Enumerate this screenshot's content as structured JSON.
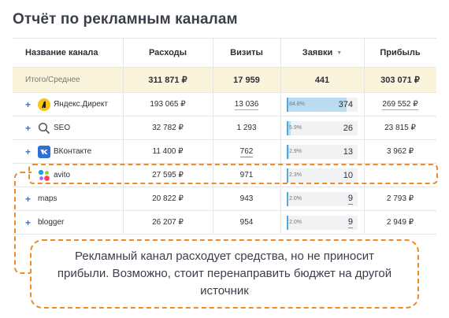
{
  "title": "Отчёт по рекламным каналам",
  "columns": {
    "name": "Название канала",
    "cost": "Расходы",
    "visits": "Визиты",
    "leads": "Заявки",
    "leads_sort_icon": "triangle-down-icon",
    "profit": "Прибыль"
  },
  "total": {
    "name": "Итого/Среднее",
    "cost": "311 871 ₽",
    "visits": "17 959",
    "leads": "441",
    "profit": "303 071 ₽"
  },
  "rows": [
    {
      "expand": "+",
      "icon": "yandex-direct-icon",
      "name": "Яндекс.Директ",
      "cost": "193 065 ₽",
      "visits": "13 036",
      "visits_mark": "green",
      "leads_pct": "84.8%",
      "leads_share": 0.848,
      "leads": "374",
      "leads_mark": "none",
      "profit": "269 552 ₽",
      "profit_mark": "green"
    },
    {
      "expand": "+",
      "icon": "search-icon",
      "name": "SEO",
      "cost": "32 782 ₽",
      "visits": "1 293",
      "visits_mark": "none",
      "leads_pct": "5.9%",
      "leads_share": 0.059,
      "leads": "26",
      "leads_mark": "none",
      "profit": "23 815 ₽",
      "profit_mark": "none"
    },
    {
      "expand": "+",
      "icon": "vk-icon",
      "name": "ВКонтакте",
      "cost": "11 400 ₽",
      "visits": "762",
      "visits_mark": "red",
      "leads_pct": "2.9%",
      "leads_share": 0.029,
      "leads": "13",
      "leads_mark": "none",
      "profit": "3 962 ₽",
      "profit_mark": "none"
    },
    {
      "expand": "",
      "icon": "avito-icon",
      "name": "avito",
      "cost": "27 595 ₽",
      "visits": "971",
      "visits_mark": "none",
      "leads_pct": "2.3%",
      "leads_share": 0.023,
      "leads": "10",
      "leads_mark": "none",
      "profit": "",
      "profit_mark": "none"
    },
    {
      "expand": "+",
      "icon": "",
      "name": "maps",
      "cost": "20 822 ₽",
      "visits": "943",
      "visits_mark": "none",
      "leads_pct": "2.0%",
      "leads_share": 0.02,
      "leads": "9",
      "leads_mark": "red",
      "profit": "2 793 ₽",
      "profit_mark": "none"
    },
    {
      "expand": "+",
      "icon": "",
      "name": "blogger",
      "cost": "26 207 ₽",
      "visits": "954",
      "visits_mark": "none",
      "leads_pct": "2.0%",
      "leads_share": 0.02,
      "leads": "9",
      "leads_mark": "red",
      "profit": "2 949 ₽",
      "profit_mark": "none"
    }
  ],
  "callout": "Рекламный канал расходует средства, но не приносит прибыли. Возможно, стоит перенаправить бюджет на другой источник",
  "colors": {
    "accent": "#ef8a2a",
    "bar": "#b9dcf2",
    "link": "#3d6fd6",
    "total_bg": "#fbf4dc"
  }
}
